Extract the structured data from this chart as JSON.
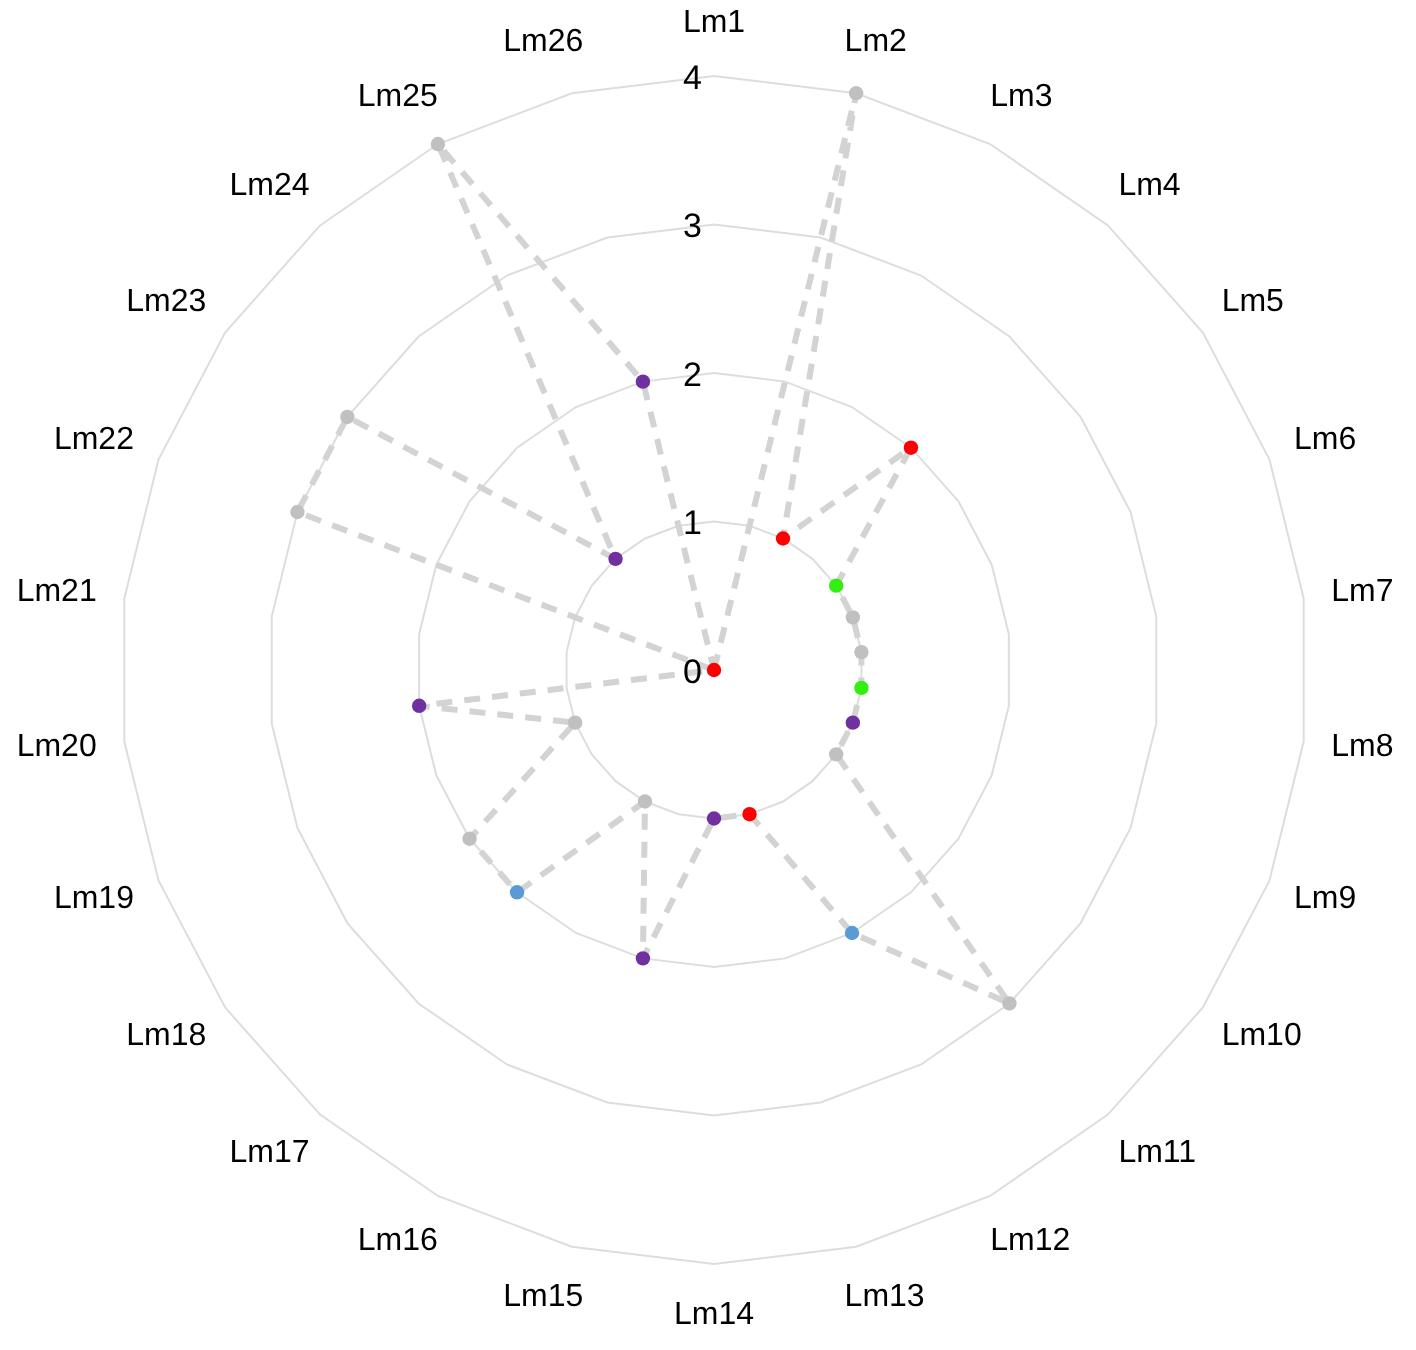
{
  "chart_data": {
    "type": "radar",
    "categories": [
      "Lm1",
      "Lm2",
      "Lm3",
      "Lm4",
      "Lm5",
      "Lm6",
      "Lm7",
      "Lm8",
      "Lm9",
      "Lm10",
      "Lm11",
      "Lm12",
      "Lm13",
      "Lm14",
      "Lm15",
      "Lm16",
      "Lm17",
      "Lm18",
      "Lm19",
      "Lm20",
      "Lm21",
      "Lm22",
      "Lm23",
      "Lm24",
      "Lm25",
      "Lm26"
    ],
    "series": [
      {
        "color": "#d3d3d3",
        "values": [
          0,
          4,
          1,
          2,
          1,
          1,
          1,
          1,
          1,
          1,
          3,
          2,
          1,
          1,
          2,
          1,
          2,
          2,
          1,
          2,
          0,
          3,
          3,
          1,
          4,
          2
        ]
      }
    ],
    "colors": [
      "#c0c0c0",
      "#c0c0c0",
      "#ff0000",
      "#ff0000",
      "#33ee11",
      "#c0c0c0",
      "#c0c0c0",
      "#33ee11",
      "#7030a0",
      "#c0c0c0",
      "#c0c0c0",
      "#5b9bd5",
      "#ff0000",
      "#7030a0",
      "#7030a0",
      "#c0c0c0",
      "#5b9bd5",
      "#c0c0c0",
      "#c0c0c0",
      "#7030a0",
      "#ff0000",
      "#c0c0c0",
      "#c0c0c0",
      "#7030a0",
      "#c0c0c0",
      "#7030a0"
    ],
    "ylim": [
      0,
      4
    ],
    "yticks": [
      0,
      1,
      2,
      3,
      4
    ],
    "grid": true,
    "marker": "circle",
    "line_style": "dashed"
  }
}
